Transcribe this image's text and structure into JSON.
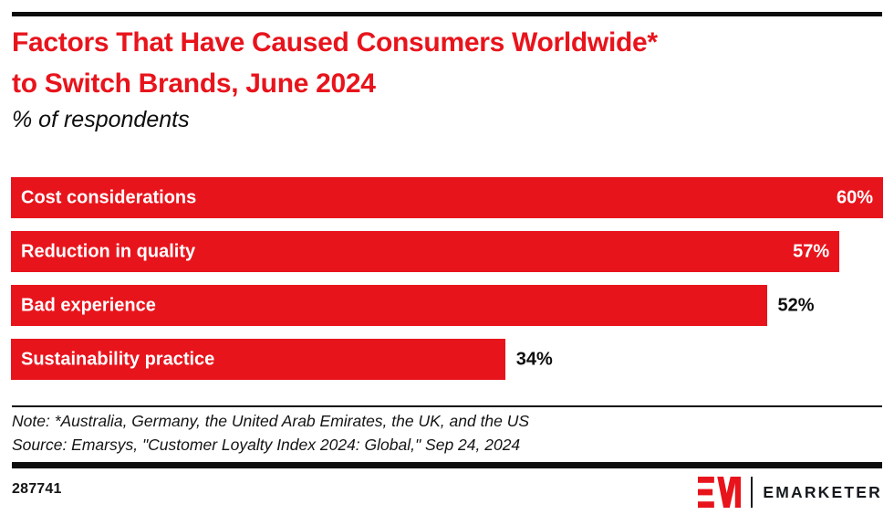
{
  "header": {
    "title_line1": "Factors That Have Caused Consumers Worldwide*",
    "title_line2": "to Switch Brands, June 2024",
    "subtitle": "% of respondents"
  },
  "chart_data": {
    "type": "bar",
    "orientation": "horizontal",
    "title": "Factors That Have Caused Consumers Worldwide* to Switch Brands, June 2024",
    "subtitle": "% of respondents",
    "categories": [
      "Cost considerations",
      "Reduction in quality",
      "Bad experience",
      "Sustainability practice"
    ],
    "values": [
      60,
      57,
      52,
      34
    ],
    "value_labels": [
      "60%",
      "57%",
      "52%",
      "34%"
    ],
    "label_placement": [
      "inside",
      "inside",
      "outside",
      "outside"
    ],
    "xlim": [
      0,
      60
    ],
    "grid": false,
    "legend": "none",
    "bar_color": "#e8141c"
  },
  "notes": {
    "note": "Note: *Australia, Germany, the United Arab Emirates, the UK, and the US",
    "source": "Source: Emarsys, \"Customer Loyalty Index 2024: Global,\" Sep 24, 2024"
  },
  "footer": {
    "chart_id": "287741",
    "logo_text": "EMARKETER"
  },
  "colors": {
    "accent_red": "#e8141c",
    "rule_black": "#0d0d0d",
    "text_black": "#141414"
  }
}
